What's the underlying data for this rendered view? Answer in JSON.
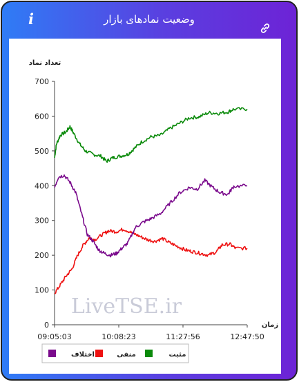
{
  "header": {
    "title": "وضعیت نمادهای بازار",
    "info_icon": "i",
    "link_icon": "link-icon"
  },
  "watermark": "LiveTSE.ir",
  "colors": {
    "positive": "#0a8a0a",
    "negative": "#ee1111",
    "difference": "#7a0a8c"
  },
  "chart_data": {
    "type": "line",
    "ylabel": "تعداد نماد",
    "xlabel": "زمان",
    "ylim": [
      0,
      700
    ],
    "yticks": [
      0,
      100,
      200,
      300,
      400,
      500,
      600,
      700
    ],
    "xticks": [
      "09:05:03",
      "10:08:23",
      "11:27:56",
      "12:47:50"
    ],
    "legend_position": "bottom",
    "series": [
      {
        "name": "مثبت",
        "color": "#0a8a0a",
        "points": [
          [
            0,
            480
          ],
          [
            0.01,
            520
          ],
          [
            0.03,
            545
          ],
          [
            0.06,
            555
          ],
          [
            0.08,
            570
          ],
          [
            0.1,
            550
          ],
          [
            0.13,
            520
          ],
          [
            0.16,
            500
          ],
          [
            0.2,
            490
          ],
          [
            0.24,
            485
          ],
          [
            0.27,
            470
          ],
          [
            0.3,
            480
          ],
          [
            0.34,
            485
          ],
          [
            0.38,
            490
          ],
          [
            0.41,
            505
          ],
          [
            0.45,
            525
          ],
          [
            0.5,
            540
          ],
          [
            0.55,
            545
          ],
          [
            0.6,
            565
          ],
          [
            0.65,
            580
          ],
          [
            0.7,
            595
          ],
          [
            0.75,
            598
          ],
          [
            0.8,
            610
          ],
          [
            0.85,
            608
          ],
          [
            0.9,
            612
          ],
          [
            0.93,
            620
          ],
          [
            1,
            620
          ]
        ]
      },
      {
        "name": "منفی",
        "color": "#ee1111",
        "points": [
          [
            0,
            90
          ],
          [
            0.03,
            115
          ],
          [
            0.06,
            140
          ],
          [
            0.09,
            160
          ],
          [
            0.12,
            200
          ],
          [
            0.15,
            230
          ],
          [
            0.18,
            250
          ],
          [
            0.21,
            245
          ],
          [
            0.25,
            260
          ],
          [
            0.28,
            270
          ],
          [
            0.32,
            268
          ],
          [
            0.36,
            275
          ],
          [
            0.4,
            265
          ],
          [
            0.44,
            255
          ],
          [
            0.48,
            245
          ],
          [
            0.52,
            240
          ],
          [
            0.56,
            248
          ],
          [
            0.6,
            235
          ],
          [
            0.64,
            225
          ],
          [
            0.68,
            215
          ],
          [
            0.72,
            210
          ],
          [
            0.76,
            205
          ],
          [
            0.8,
            200
          ],
          [
            0.84,
            210
          ],
          [
            0.87,
            230
          ],
          [
            0.91,
            232
          ],
          [
            0.94,
            220
          ],
          [
            1,
            220
          ]
        ]
      },
      {
        "name": "اختلاف",
        "color": "#7a0a8c",
        "points": [
          [
            0,
            395
          ],
          [
            0.02,
            425
          ],
          [
            0.05,
            430
          ],
          [
            0.08,
            410
          ],
          [
            0.11,
            380
          ],
          [
            0.14,
            320
          ],
          [
            0.17,
            260
          ],
          [
            0.2,
            240
          ],
          [
            0.23,
            215
          ],
          [
            0.26,
            205
          ],
          [
            0.29,
            200
          ],
          [
            0.32,
            205
          ],
          [
            0.35,
            220
          ],
          [
            0.38,
            235
          ],
          [
            0.42,
            280
          ],
          [
            0.46,
            295
          ],
          [
            0.5,
            305
          ],
          [
            0.55,
            320
          ],
          [
            0.6,
            350
          ],
          [
            0.65,
            380
          ],
          [
            0.7,
            395
          ],
          [
            0.74,
            390
          ],
          [
            0.78,
            415
          ],
          [
            0.82,
            395
          ],
          [
            0.86,
            380
          ],
          [
            0.9,
            375
          ],
          [
            0.93,
            398
          ],
          [
            1,
            400
          ]
        ]
      }
    ]
  }
}
